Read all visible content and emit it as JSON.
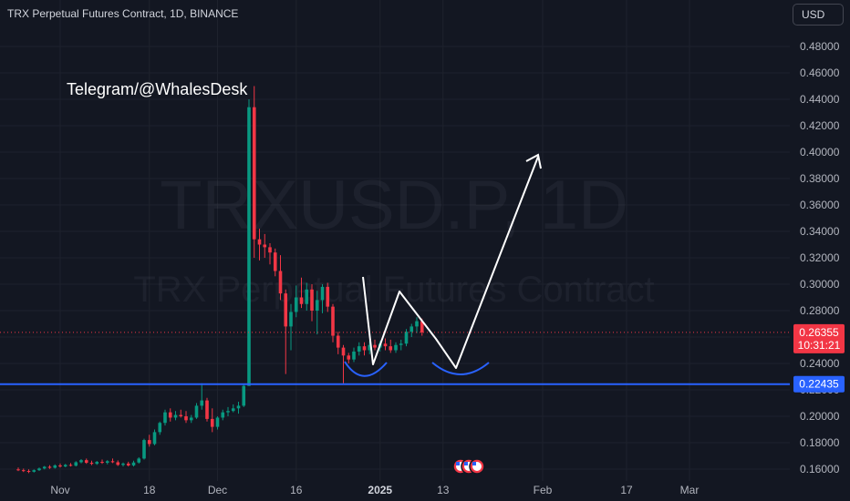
{
  "header": {
    "title": "TRX Perpetual Futures Contract, 1D, BINANCE",
    "currency": "USD"
  },
  "watermark": {
    "symbol": "TRXUSD.P, 1D",
    "name": "TRX Perpetual Futures Contract"
  },
  "annotation": {
    "text": "Telegram/@WhalesDesk"
  },
  "colors": {
    "background": "#131722",
    "up": "#089981",
    "down": "#f23645",
    "level_line": "#2962ff",
    "price_label": "#f23645",
    "drawing": "#ffffff",
    "cup": "#2962ff"
  },
  "chart_data": {
    "type": "candlestick",
    "y_axis": {
      "ylim": [
        0.151,
        0.495
      ],
      "ticks": [
        "0.48000",
        "0.46000",
        "0.44000",
        "0.42000",
        "0.40000",
        "0.38000",
        "0.36000",
        "0.34000",
        "0.32000",
        "0.30000",
        "0.28000",
        "0.26000",
        "0.24000",
        "0.22000",
        "0.20000",
        "0.18000",
        "0.16000"
      ],
      "tick_values": [
        0.48,
        0.46,
        0.44,
        0.42,
        0.4,
        0.38,
        0.36,
        0.34,
        0.32,
        0.3,
        0.28,
        0.26,
        0.24,
        0.22,
        0.2,
        0.18,
        0.16
      ],
      "position": "right"
    },
    "x_axis": {
      "range": [
        "2024-10-24",
        "2025-03-05"
      ],
      "ticks": [
        {
          "label": "Nov",
          "date": "2024-11-01"
        },
        {
          "label": "18",
          "date": "2024-11-18"
        },
        {
          "label": "Dec",
          "date": "2024-12-01"
        },
        {
          "label": "16",
          "date": "2024-12-16"
        },
        {
          "label": "2025",
          "date": "2025-01-01"
        },
        {
          "label": "13",
          "date": "2025-01-13"
        },
        {
          "label": "Feb",
          "date": "2025-02-01"
        },
        {
          "label": "17",
          "date": "2025-02-17"
        },
        {
          "label": "Mar",
          "date": "2025-03-01"
        }
      ]
    },
    "horizontal_level": {
      "value": 0.22435,
      "label": "0.22435"
    },
    "last_price": {
      "value": 0.26355,
      "label": "0.26355",
      "countdown": "10:31:21"
    },
    "candles": [
      {
        "date": "2024-10-24",
        "o": 0.1598,
        "h": 0.1612,
        "l": 0.1585,
        "c": 0.1592
      },
      {
        "date": "2024-10-25",
        "o": 0.1592,
        "h": 0.1604,
        "l": 0.1578,
        "c": 0.1586
      },
      {
        "date": "2024-10-26",
        "o": 0.1586,
        "h": 0.1598,
        "l": 0.157,
        "c": 0.158
      },
      {
        "date": "2024-10-27",
        "o": 0.158,
        "h": 0.1598,
        "l": 0.1574,
        "c": 0.1592
      },
      {
        "date": "2024-10-28",
        "o": 0.1592,
        "h": 0.1612,
        "l": 0.1586,
        "c": 0.1605
      },
      {
        "date": "2024-10-29",
        "o": 0.1605,
        "h": 0.1624,
        "l": 0.1598,
        "c": 0.1618
      },
      {
        "date": "2024-10-30",
        "o": 0.1618,
        "h": 0.163,
        "l": 0.1602,
        "c": 0.161
      },
      {
        "date": "2024-10-31",
        "o": 0.161,
        "h": 0.1636,
        "l": 0.1604,
        "c": 0.1628
      },
      {
        "date": "2024-11-01",
        "o": 0.1628,
        "h": 0.1642,
        "l": 0.1612,
        "c": 0.162
      },
      {
        "date": "2024-11-02",
        "o": 0.162,
        "h": 0.164,
        "l": 0.1614,
        "c": 0.1632
      },
      {
        "date": "2024-11-03",
        "o": 0.1632,
        "h": 0.1646,
        "l": 0.162,
        "c": 0.1626
      },
      {
        "date": "2024-11-04",
        "o": 0.1626,
        "h": 0.166,
        "l": 0.162,
        "c": 0.1652
      },
      {
        "date": "2024-11-05",
        "o": 0.1652,
        "h": 0.1676,
        "l": 0.1644,
        "c": 0.1668
      },
      {
        "date": "2024-11-06",
        "o": 0.1668,
        "h": 0.168,
        "l": 0.164,
        "c": 0.1648
      },
      {
        "date": "2024-11-07",
        "o": 0.1648,
        "h": 0.1664,
        "l": 0.163,
        "c": 0.164
      },
      {
        "date": "2024-11-08",
        "o": 0.164,
        "h": 0.1662,
        "l": 0.1632,
        "c": 0.1655
      },
      {
        "date": "2024-11-09",
        "o": 0.1655,
        "h": 0.1672,
        "l": 0.164,
        "c": 0.1648
      },
      {
        "date": "2024-11-10",
        "o": 0.1648,
        "h": 0.1668,
        "l": 0.1636,
        "c": 0.166
      },
      {
        "date": "2024-11-11",
        "o": 0.166,
        "h": 0.168,
        "l": 0.1646,
        "c": 0.1652
      },
      {
        "date": "2024-11-12",
        "o": 0.1652,
        "h": 0.1666,
        "l": 0.1624,
        "c": 0.1632
      },
      {
        "date": "2024-11-13",
        "o": 0.1632,
        "h": 0.165,
        "l": 0.162,
        "c": 0.1642
      },
      {
        "date": "2024-11-14",
        "o": 0.1642,
        "h": 0.1656,
        "l": 0.162,
        "c": 0.1628
      },
      {
        "date": "2024-11-15",
        "o": 0.1628,
        "h": 0.1664,
        "l": 0.162,
        "c": 0.165
      },
      {
        "date": "2024-11-16",
        "o": 0.165,
        "h": 0.169,
        "l": 0.1642,
        "c": 0.168
      },
      {
        "date": "2024-11-17",
        "o": 0.168,
        "h": 0.183,
        "l": 0.1672,
        "c": 0.182
      },
      {
        "date": "2024-11-18",
        "o": 0.182,
        "h": 0.186,
        "l": 0.177,
        "c": 0.179
      },
      {
        "date": "2024-11-19",
        "o": 0.179,
        "h": 0.19,
        "l": 0.178,
        "c": 0.188
      },
      {
        "date": "2024-11-20",
        "o": 0.188,
        "h": 0.196,
        "l": 0.186,
        "c": 0.195
      },
      {
        "date": "2024-11-21",
        "o": 0.195,
        "h": 0.205,
        "l": 0.193,
        "c": 0.203
      },
      {
        "date": "2024-11-22",
        "o": 0.203,
        "h": 0.206,
        "l": 0.196,
        "c": 0.199
      },
      {
        "date": "2024-11-23",
        "o": 0.199,
        "h": 0.204,
        "l": 0.197,
        "c": 0.201
      },
      {
        "date": "2024-11-24",
        "o": 0.201,
        "h": 0.205,
        "l": 0.199,
        "c": 0.2
      },
      {
        "date": "2024-11-25",
        "o": 0.2,
        "h": 0.204,
        "l": 0.195,
        "c": 0.197
      },
      {
        "date": "2024-11-26",
        "o": 0.197,
        "h": 0.201,
        "l": 0.195,
        "c": 0.199
      },
      {
        "date": "2024-11-27",
        "o": 0.199,
        "h": 0.21,
        "l": 0.198,
        "c": 0.208
      },
      {
        "date": "2024-11-28",
        "o": 0.208,
        "h": 0.225,
        "l": 0.205,
        "c": 0.212
      },
      {
        "date": "2024-11-29",
        "o": 0.212,
        "h": 0.214,
        "l": 0.196,
        "c": 0.198
      },
      {
        "date": "2024-11-30",
        "o": 0.198,
        "h": 0.206,
        "l": 0.188,
        "c": 0.192
      },
      {
        "date": "2024-12-01",
        "o": 0.192,
        "h": 0.2,
        "l": 0.19,
        "c": 0.199
      },
      {
        "date": "2024-12-02",
        "o": 0.199,
        "h": 0.205,
        "l": 0.197,
        "c": 0.203
      },
      {
        "date": "2024-12-03",
        "o": 0.203,
        "h": 0.207,
        "l": 0.2,
        "c": 0.204
      },
      {
        "date": "2024-12-04",
        "o": 0.204,
        "h": 0.209,
        "l": 0.203,
        "c": 0.206
      },
      {
        "date": "2024-12-05",
        "o": 0.206,
        "h": 0.211,
        "l": 0.202,
        "c": 0.208
      },
      {
        "date": "2024-12-06",
        "o": 0.208,
        "h": 0.224,
        "l": 0.207,
        "c": 0.223
      },
      {
        "date": "2024-12-07",
        "o": 0.223,
        "h": 0.44,
        "l": 0.223,
        "c": 0.434
      },
      {
        "date": "2024-12-08",
        "o": 0.434,
        "h": 0.45,
        "l": 0.32,
        "c": 0.334
      },
      {
        "date": "2024-12-09",
        "o": 0.334,
        "h": 0.342,
        "l": 0.318,
        "c": 0.33
      },
      {
        "date": "2024-12-10",
        "o": 0.33,
        "h": 0.338,
        "l": 0.32,
        "c": 0.328
      },
      {
        "date": "2024-12-11",
        "o": 0.328,
        "h": 0.331,
        "l": 0.315,
        "c": 0.324
      },
      {
        "date": "2024-12-12",
        "o": 0.324,
        "h": 0.327,
        "l": 0.306,
        "c": 0.31
      },
      {
        "date": "2024-12-13",
        "o": 0.31,
        "h": 0.322,
        "l": 0.288,
        "c": 0.293
      },
      {
        "date": "2024-12-14",
        "o": 0.293,
        "h": 0.296,
        "l": 0.232,
        "c": 0.268
      },
      {
        "date": "2024-12-15",
        "o": 0.268,
        "h": 0.285,
        "l": 0.25,
        "c": 0.279
      },
      {
        "date": "2024-12-16",
        "o": 0.279,
        "h": 0.299,
        "l": 0.275,
        "c": 0.29
      },
      {
        "date": "2024-12-17",
        "o": 0.29,
        "h": 0.305,
        "l": 0.282,
        "c": 0.285
      },
      {
        "date": "2024-12-18",
        "o": 0.285,
        "h": 0.301,
        "l": 0.28,
        "c": 0.296
      },
      {
        "date": "2024-12-19",
        "o": 0.296,
        "h": 0.3,
        "l": 0.272,
        "c": 0.28
      },
      {
        "date": "2024-12-20",
        "o": 0.28,
        "h": 0.295,
        "l": 0.262,
        "c": 0.288
      },
      {
        "date": "2024-12-21",
        "o": 0.288,
        "h": 0.3,
        "l": 0.278,
        "c": 0.298
      },
      {
        "date": "2024-12-22",
        "o": 0.298,
        "h": 0.301,
        "l": 0.279,
        "c": 0.283
      },
      {
        "date": "2024-12-23",
        "o": 0.283,
        "h": 0.285,
        "l": 0.256,
        "c": 0.261
      },
      {
        "date": "2024-12-24",
        "o": 0.261,
        "h": 0.264,
        "l": 0.247,
        "c": 0.252
      },
      {
        "date": "2024-12-25",
        "o": 0.252,
        "h": 0.254,
        "l": 0.225,
        "c": 0.246
      },
      {
        "date": "2024-12-26",
        "o": 0.246,
        "h": 0.248,
        "l": 0.24,
        "c": 0.243
      },
      {
        "date": "2024-12-27",
        "o": 0.243,
        "h": 0.252,
        "l": 0.241,
        "c": 0.249
      },
      {
        "date": "2024-12-28",
        "o": 0.249,
        "h": 0.256,
        "l": 0.246,
        "c": 0.253
      },
      {
        "date": "2024-12-29",
        "o": 0.253,
        "h": 0.256,
        "l": 0.246,
        "c": 0.25
      },
      {
        "date": "2024-12-30",
        "o": 0.25,
        "h": 0.257,
        "l": 0.247,
        "c": 0.254
      },
      {
        "date": "2024-12-31",
        "o": 0.254,
        "h": 0.258,
        "l": 0.25,
        "c": 0.252
      },
      {
        "date": "2025-01-01",
        "o": 0.252,
        "h": 0.257,
        "l": 0.249,
        "c": 0.255
      },
      {
        "date": "2025-01-02",
        "o": 0.255,
        "h": 0.259,
        "l": 0.25,
        "c": 0.253
      },
      {
        "date": "2025-01-03",
        "o": 0.253,
        "h": 0.258,
        "l": 0.248,
        "c": 0.25
      },
      {
        "date": "2025-01-04",
        "o": 0.25,
        "h": 0.256,
        "l": 0.248,
        "c": 0.254
      },
      {
        "date": "2025-01-05",
        "o": 0.254,
        "h": 0.258,
        "l": 0.25,
        "c": 0.255
      },
      {
        "date": "2025-01-06",
        "o": 0.255,
        "h": 0.266,
        "l": 0.253,
        "c": 0.264
      },
      {
        "date": "2025-01-07",
        "o": 0.264,
        "h": 0.27,
        "l": 0.26,
        "c": 0.268
      },
      {
        "date": "2025-01-08",
        "o": 0.268,
        "h": 0.275,
        "l": 0.263,
        "c": 0.272
      },
      {
        "date": "2025-01-09",
        "o": 0.272,
        "h": 0.274,
        "l": 0.261,
        "c": 0.2635
      }
    ]
  },
  "event_markers": {
    "count": 3,
    "icon": "us-flag-icon"
  }
}
